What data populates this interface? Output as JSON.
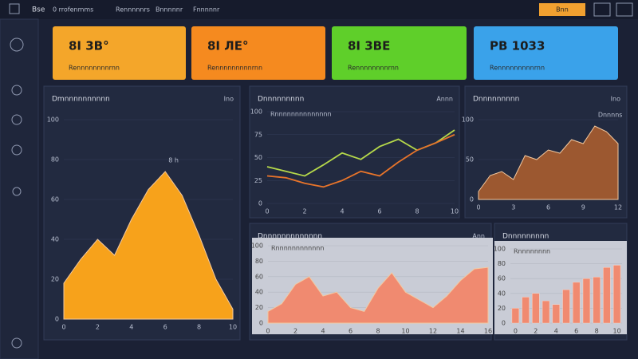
{
  "header": {
    "title": "Bse",
    "tabs": [
      "0 rrofenmms",
      "Rennnnnrs",
      "Bnnnnnr",
      "Fnnnnnr"
    ],
    "button": "Bnn"
  },
  "cards": [
    {
      "value": "8I 3B°",
      "label": "Rennnnnnnnrnn",
      "color": "#f4a62a"
    },
    {
      "value": "8I ЛЕ°",
      "label": "Rennnnnnnnnrnn",
      "color": "#f58a1f"
    },
    {
      "value": "8I 3BE",
      "label": "Rennnnnnnnrnn",
      "color": "#5fcf2a"
    },
    {
      "value": "PB 1033",
      "label": "Rennnnnnnnnrnn",
      "color": "#3aa2ea"
    }
  ],
  "chart_data": [
    {
      "type": "area",
      "title": "Dmnnnnnnnnnn",
      "corner": "Ino",
      "annotation": "8 h",
      "color": "#f7a21b",
      "x": [
        0,
        1,
        2,
        3,
        4,
        5,
        6,
        7,
        8,
        9,
        10
      ],
      "xlim": [
        0,
        10
      ],
      "xticks": [
        0,
        2,
        4,
        6,
        8,
        10
      ],
      "series": [
        {
          "values": [
            18,
            30,
            40,
            32,
            50,
            65,
            74,
            62,
            42,
            20,
            5
          ]
        }
      ],
      "ylim": [
        0,
        100
      ],
      "yticks": [
        0,
        20,
        40,
        60,
        80,
        100
      ]
    },
    {
      "type": "line",
      "title": "Dnnnnnnnnn",
      "corner": "Annn",
      "subtitle": "Rnnnnnnnnnnnnnn",
      "x": [
        0,
        1,
        2,
        3,
        4,
        5,
        6,
        7,
        8,
        9,
        10
      ],
      "xlim": [
        0,
        10
      ],
      "xticks": [
        0,
        2,
        4,
        6,
        8,
        10
      ],
      "series": [
        {
          "color": "#b6d94a",
          "values": [
            40,
            35,
            30,
            42,
            55,
            48,
            62,
            70,
            58,
            66,
            80
          ]
        },
        {
          "color": "#e8742a",
          "values": [
            30,
            28,
            22,
            18,
            25,
            35,
            30,
            45,
            58,
            66,
            75
          ]
        }
      ],
      "ylim": [
        0,
        100
      ],
      "yticks": [
        0,
        25,
        50,
        75,
        100
      ]
    },
    {
      "type": "area",
      "title": "Dnnnnnnnnn",
      "corner": "Ino",
      "annotation": "Dnnnns",
      "color": "#9c5830",
      "x": [
        0,
        1,
        2,
        3,
        4,
        5,
        6,
        7,
        8,
        9,
        10,
        11,
        12
      ],
      "xlim": [
        0,
        12
      ],
      "xticks": [
        0,
        3,
        6,
        9,
        12
      ],
      "series": [
        {
          "values": [
            10,
            30,
            35,
            25,
            55,
            50,
            62,
            58,
            75,
            70,
            92,
            85,
            70
          ]
        }
      ],
      "ylim": [
        0,
        100
      ],
      "yticks": [
        0,
        50,
        100
      ]
    },
    {
      "type": "area",
      "title": "Dnnnnnnnnnnnnn",
      "corner": "Ann",
      "subtitle": "Rnnnnnnnnnnnn",
      "color": "#f08a70",
      "x": [
        0,
        1,
        2,
        3,
        4,
        5,
        6,
        7,
        8,
        9,
        10,
        11,
        12,
        13,
        14,
        15,
        16
      ],
      "xlim": [
        0,
        16
      ],
      "xticks": [
        0,
        2,
        4,
        6,
        8,
        10,
        12,
        14,
        16
      ],
      "series": [
        {
          "values": [
            15,
            25,
            50,
            60,
            35,
            40,
            20,
            15,
            45,
            65,
            40,
            30,
            20,
            35,
            55,
            70,
            72
          ]
        }
      ],
      "ylim": [
        0,
        100
      ],
      "yticks": [
        0,
        20,
        40,
        60,
        80,
        100
      ]
    },
    {
      "type": "bar",
      "title": "Dnnnnnnnnn",
      "subtitle": "Rnnnnnnnn",
      "color": "#f08a70",
      "x": [
        0,
        1,
        2,
        3,
        4,
        5,
        6,
        7,
        8,
        9,
        10
      ],
      "xlim": [
        -0.5,
        10.5
      ],
      "xticks": [
        0,
        2,
        4,
        6,
        8,
        10
      ],
      "series": [
        {
          "values": [
            20,
            35,
            40,
            30,
            25,
            45,
            55,
            60,
            62,
            75,
            78
          ]
        }
      ],
      "ylim": [
        0,
        100
      ],
      "yticks": [
        0,
        20,
        40,
        60,
        80,
        100
      ]
    }
  ]
}
